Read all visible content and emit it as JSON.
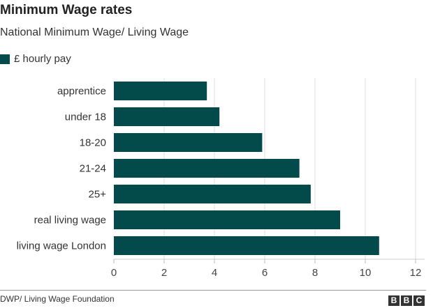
{
  "chart_data": {
    "type": "bar",
    "orientation": "horizontal",
    "title": "Minimum Wage rates",
    "subtitle": "National Minimum Wage/ Living Wage",
    "legend": [
      "£ hourly pay"
    ],
    "legend_placement": "top-left",
    "categories": [
      "apprentice",
      "under 18",
      "18-20",
      "21-24",
      "25+",
      "real living wage",
      "living wage London"
    ],
    "series": [
      {
        "name": "£ hourly pay",
        "values": [
          3.7,
          4.2,
          5.9,
          7.38,
          7.83,
          9.0,
          10.55
        ]
      }
    ],
    "xlim": [
      0,
      12
    ],
    "xticks": [
      "0",
      "2",
      "4",
      "6",
      "8",
      "10",
      "12"
    ],
    "grid": true,
    "color": "#034b4b"
  },
  "footer": {
    "source": "DWP/ Living Wage Foundation",
    "logo": "BBC"
  }
}
